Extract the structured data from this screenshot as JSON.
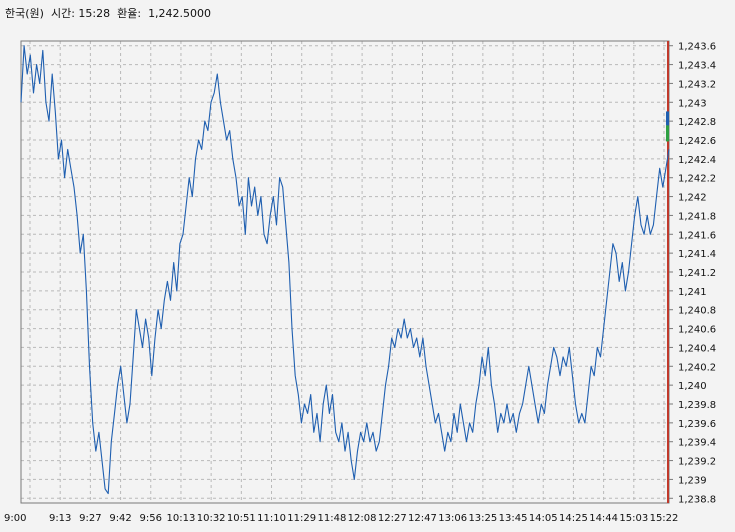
{
  "header": {
    "currency_label": "한국(원)",
    "time_label": "시간:",
    "time_value": "15:28",
    "rate_label": "환율:",
    "rate_value": "1,242.5000"
  },
  "colors": {
    "line": "#1f5fb0",
    "grid": "#b9b9b9",
    "frame": "#7a7a7a",
    "background": "#f3f3f3",
    "right_marker": "#c0392b",
    "up_marker": "#2ea043",
    "down_marker": "#1f5fb0"
  },
  "chart_data": {
    "type": "line",
    "title": "",
    "xlabel": "",
    "ylabel": "",
    "ylim": [
      1238.75,
      1243.65
    ],
    "grid": true,
    "x_ticks": [
      "9:00",
      "9:13",
      "9:27",
      "9:42",
      "9:56",
      "10:13",
      "10:32",
      "10:51",
      "11:10",
      "11:29",
      "11:48",
      "12:08",
      "12:27",
      "12:47",
      "13:06",
      "13:25",
      "13:45",
      "14:05",
      "14:25",
      "14:44",
      "15:03",
      "15:22"
    ],
    "y_ticks": [
      "1,238.8",
      "1,239",
      "1,239.2",
      "1,239.4",
      "1,239.6",
      "1,239.8",
      "1,240",
      "1,240.2",
      "1,240.4",
      "1,240.6",
      "1,240.8",
      "1,241",
      "1,241.2",
      "1,241.4",
      "1,241.6",
      "1,241.8",
      "1,242",
      "1,242.2",
      "1,242.4",
      "1,242.6",
      "1,242.8",
      "1,243",
      "1,243.2",
      "1,243.4",
      "1,243.6"
    ],
    "series": [
      {
        "values": [
          [
            0,
            1243.0
          ],
          [
            1,
            1243.6
          ],
          [
            2,
            1243.3
          ],
          [
            3,
            1243.5
          ],
          [
            4,
            1243.1
          ],
          [
            5,
            1243.4
          ],
          [
            6,
            1243.2
          ],
          [
            7,
            1243.55
          ],
          [
            8,
            1243.0
          ],
          [
            9,
            1242.8
          ],
          [
            10,
            1243.3
          ],
          [
            11,
            1242.9
          ],
          [
            12,
            1242.4
          ],
          [
            13,
            1242.6
          ],
          [
            14,
            1242.2
          ],
          [
            15,
            1242.5
          ],
          [
            16,
            1242.3
          ],
          [
            17,
            1242.1
          ],
          [
            18,
            1241.8
          ],
          [
            19,
            1241.4
          ],
          [
            20,
            1241.6
          ],
          [
            21,
            1241.0
          ],
          [
            22,
            1240.2
          ],
          [
            23,
            1239.6
          ],
          [
            24,
            1239.3
          ],
          [
            25,
            1239.5
          ],
          [
            26,
            1239.2
          ],
          [
            27,
            1238.9
          ],
          [
            28,
            1238.85
          ],
          [
            29,
            1239.4
          ],
          [
            30,
            1239.7
          ],
          [
            31,
            1240.0
          ],
          [
            32,
            1240.2
          ],
          [
            33,
            1239.9
          ],
          [
            34,
            1239.6
          ],
          [
            35,
            1239.8
          ],
          [
            36,
            1240.3
          ],
          [
            37,
            1240.8
          ],
          [
            38,
            1240.6
          ],
          [
            39,
            1240.4
          ],
          [
            40,
            1240.7
          ],
          [
            41,
            1240.5
          ],
          [
            42,
            1240.1
          ],
          [
            43,
            1240.5
          ],
          [
            44,
            1240.8
          ],
          [
            45,
            1240.6
          ],
          [
            46,
            1240.9
          ],
          [
            47,
            1241.1
          ],
          [
            48,
            1240.9
          ],
          [
            49,
            1241.3
          ],
          [
            50,
            1241.0
          ],
          [
            51,
            1241.5
          ],
          [
            52,
            1241.6
          ],
          [
            53,
            1241.9
          ],
          [
            54,
            1242.2
          ],
          [
            55,
            1242.0
          ],
          [
            56,
            1242.4
          ],
          [
            57,
            1242.6
          ],
          [
            58,
            1242.5
          ],
          [
            59,
            1242.8
          ],
          [
            60,
            1242.7
          ],
          [
            61,
            1243.0
          ],
          [
            62,
            1243.1
          ],
          [
            63,
            1243.3
          ],
          [
            64,
            1243.0
          ],
          [
            65,
            1242.8
          ],
          [
            66,
            1242.6
          ],
          [
            67,
            1242.7
          ],
          [
            68,
            1242.4
          ],
          [
            69,
            1242.2
          ],
          [
            70,
            1241.9
          ],
          [
            71,
            1242.0
          ],
          [
            72,
            1241.6
          ],
          [
            73,
            1242.2
          ],
          [
            74,
            1241.9
          ],
          [
            75,
            1242.1
          ],
          [
            76,
            1241.8
          ],
          [
            77,
            1242.0
          ],
          [
            78,
            1241.6
          ],
          [
            79,
            1241.5
          ],
          [
            80,
            1241.8
          ],
          [
            81,
            1242.0
          ],
          [
            82,
            1241.7
          ],
          [
            83,
            1242.2
          ],
          [
            84,
            1242.1
          ],
          [
            85,
            1241.7
          ],
          [
            86,
            1241.3
          ],
          [
            87,
            1240.6
          ],
          [
            88,
            1240.1
          ],
          [
            89,
            1239.9
          ],
          [
            90,
            1239.6
          ],
          [
            91,
            1239.8
          ],
          [
            92,
            1239.7
          ],
          [
            93,
            1239.9
          ],
          [
            94,
            1239.5
          ],
          [
            95,
            1239.7
          ],
          [
            96,
            1239.4
          ],
          [
            97,
            1239.8
          ],
          [
            98,
            1240.0
          ],
          [
            99,
            1239.7
          ],
          [
            100,
            1239.9
          ],
          [
            101,
            1239.5
          ],
          [
            102,
            1239.4
          ],
          [
            103,
            1239.6
          ],
          [
            104,
            1239.3
          ],
          [
            105,
            1239.5
          ],
          [
            106,
            1239.2
          ],
          [
            107,
            1239.0
          ],
          [
            108,
            1239.3
          ],
          [
            109,
            1239.5
          ],
          [
            110,
            1239.4
          ],
          [
            111,
            1239.6
          ],
          [
            112,
            1239.4
          ],
          [
            113,
            1239.5
          ],
          [
            114,
            1239.3
          ],
          [
            115,
            1239.4
          ],
          [
            116,
            1239.7
          ],
          [
            117,
            1240.0
          ],
          [
            118,
            1240.2
          ],
          [
            119,
            1240.5
          ],
          [
            120,
            1240.4
          ],
          [
            121,
            1240.6
          ],
          [
            122,
            1240.5
          ],
          [
            123,
            1240.7
          ],
          [
            124,
            1240.5
          ],
          [
            125,
            1240.6
          ],
          [
            126,
            1240.4
          ],
          [
            127,
            1240.5
          ],
          [
            128,
            1240.3
          ],
          [
            129,
            1240.5
          ],
          [
            130,
            1240.2
          ],
          [
            131,
            1240.0
          ],
          [
            132,
            1239.8
          ],
          [
            133,
            1239.6
          ],
          [
            134,
            1239.7
          ],
          [
            135,
            1239.5
          ],
          [
            136,
            1239.3
          ],
          [
            137,
            1239.5
          ],
          [
            138,
            1239.4
          ],
          [
            139,
            1239.7
          ],
          [
            140,
            1239.5
          ],
          [
            141,
            1239.8
          ],
          [
            142,
            1239.6
          ],
          [
            143,
            1239.4
          ],
          [
            144,
            1239.6
          ],
          [
            145,
            1239.5
          ],
          [
            146,
            1239.8
          ],
          [
            147,
            1240.0
          ],
          [
            148,
            1240.3
          ],
          [
            149,
            1240.1
          ],
          [
            150,
            1240.4
          ],
          [
            151,
            1240.0
          ],
          [
            152,
            1239.8
          ],
          [
            153,
            1239.5
          ],
          [
            154,
            1239.7
          ],
          [
            155,
            1239.6
          ],
          [
            156,
            1239.8
          ],
          [
            157,
            1239.6
          ],
          [
            158,
            1239.7
          ],
          [
            159,
            1239.5
          ],
          [
            160,
            1239.7
          ],
          [
            161,
            1239.8
          ],
          [
            162,
            1240.0
          ],
          [
            163,
            1240.2
          ],
          [
            164,
            1240.0
          ],
          [
            165,
            1239.8
          ],
          [
            166,
            1239.6
          ],
          [
            167,
            1239.8
          ],
          [
            168,
            1239.7
          ],
          [
            169,
            1240.0
          ],
          [
            170,
            1240.2
          ],
          [
            171,
            1240.4
          ],
          [
            172,
            1240.3
          ],
          [
            173,
            1240.1
          ],
          [
            174,
            1240.3
          ],
          [
            175,
            1240.2
          ],
          [
            176,
            1240.4
          ],
          [
            177,
            1240.1
          ],
          [
            178,
            1239.8
          ],
          [
            179,
            1239.6
          ],
          [
            180,
            1239.7
          ],
          [
            181,
            1239.6
          ],
          [
            182,
            1239.9
          ],
          [
            183,
            1240.2
          ],
          [
            184,
            1240.1
          ],
          [
            185,
            1240.4
          ],
          [
            186,
            1240.3
          ],
          [
            187,
            1240.6
          ],
          [
            188,
            1240.9
          ],
          [
            189,
            1241.2
          ],
          [
            190,
            1241.5
          ],
          [
            191,
            1241.4
          ],
          [
            192,
            1241.1
          ],
          [
            193,
            1241.3
          ],
          [
            194,
            1241.0
          ],
          [
            195,
            1241.2
          ],
          [
            196,
            1241.5
          ],
          [
            197,
            1241.8
          ],
          [
            198,
            1242.0
          ],
          [
            199,
            1241.7
          ],
          [
            200,
            1241.6
          ],
          [
            201,
            1241.8
          ],
          [
            202,
            1241.6
          ],
          [
            203,
            1241.7
          ],
          [
            204,
            1242.0
          ],
          [
            205,
            1242.3
          ],
          [
            206,
            1242.1
          ],
          [
            207,
            1242.3
          ],
          [
            208,
            1242.5
          ]
        ]
      }
    ],
    "x_count": 209
  }
}
